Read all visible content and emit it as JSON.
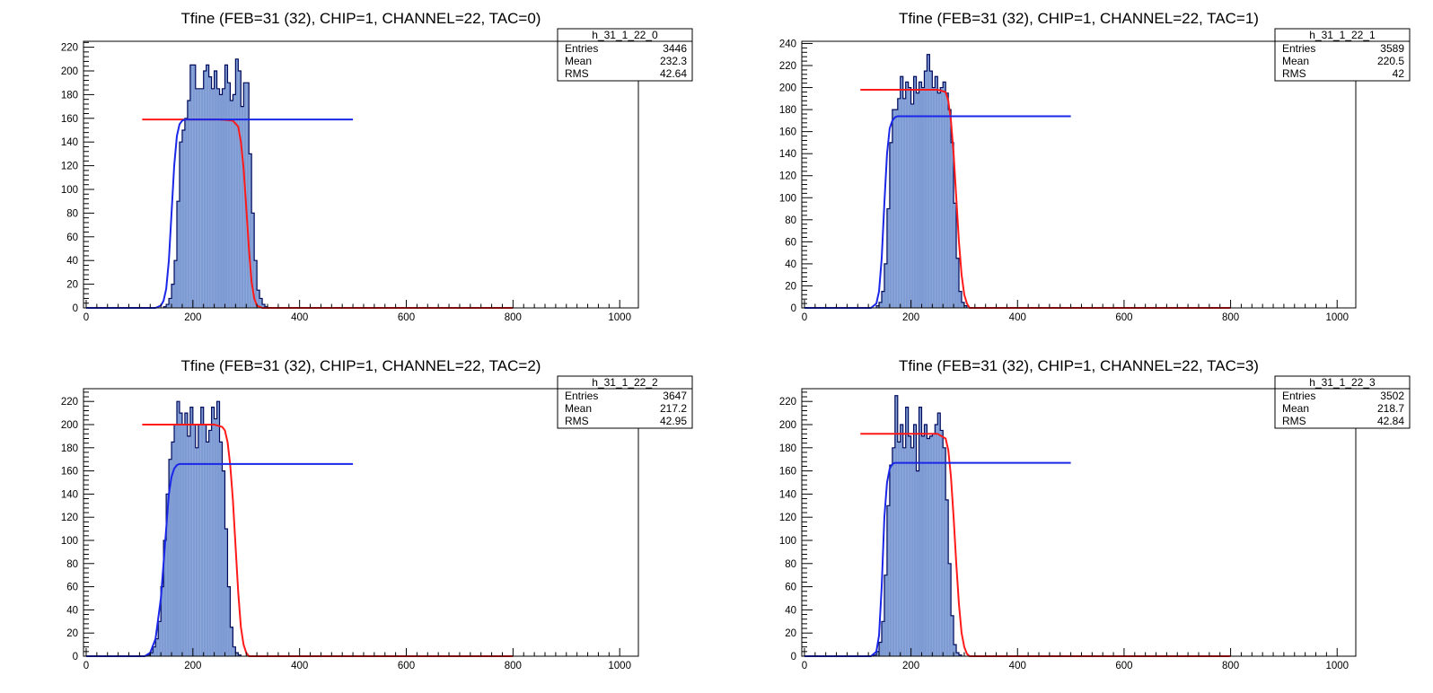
{
  "colors": {
    "fill": "#7f9bd4",
    "outline": "#000b5c",
    "fit_a": "#1a27e8",
    "fit_b": "#ff1a1a",
    "frame": "#000000"
  },
  "chart_data": [
    {
      "type": "bar",
      "title": "Tfine (FEB=31 (32), CHIP=1, CHANNEL=22, TAC=0)",
      "xlabel": "",
      "ylabel": "",
      "xlim": [
        -5,
        1035
      ],
      "ylim": [
        0,
        225
      ],
      "xticks": [
        0,
        200,
        400,
        600,
        800,
        1000
      ],
      "yticks": [
        0,
        20,
        40,
        60,
        80,
        100,
        120,
        140,
        160,
        180,
        200,
        220
      ],
      "stats": {
        "name": "h_31_1_22_0",
        "rows": [
          {
            "label": "Entries",
            "value": "3446"
          },
          {
            "label": "Mean",
            "value": "232.3"
          },
          {
            "label": "RMS",
            "value": "42.64"
          }
        ]
      },
      "bin_width": 5,
      "hist": {
        "x_start": 145,
        "values": [
          1,
          3,
          8,
          20,
          40,
          90,
          140,
          150,
          160,
          175,
          205,
          205,
          185,
          185,
          185,
          200,
          205,
          195,
          185,
          200,
          185,
          180,
          185,
          205,
          190,
          175,
          180,
          210,
          200,
          170,
          190,
          190,
          130,
          80,
          40,
          15,
          8,
          3,
          1
        ]
      },
      "fit_a": {
        "label": "rising-edge fit",
        "x": [
          0,
          130,
          140,
          145,
          150,
          155,
          160,
          165,
          170,
          175,
          180,
          185,
          190,
          500
        ],
        "y": [
          0,
          0,
          2,
          6,
          16,
          40,
          80,
          120,
          145,
          155,
          158,
          159,
          159,
          159
        ]
      },
      "fit_b": {
        "label": "falling-edge fit",
        "x": [
          105,
          250,
          275,
          285,
          290,
          295,
          300,
          305,
          310,
          315,
          320,
          330,
          800
        ],
        "y": [
          159,
          159,
          158,
          153,
          140,
          118,
          85,
          50,
          22,
          8,
          2,
          0,
          0
        ]
      }
    },
    {
      "type": "bar",
      "title": "Tfine (FEB=31 (32), CHIP=1, CHANNEL=22, TAC=1)",
      "xlabel": "",
      "ylabel": "",
      "xlim": [
        -5,
        1035
      ],
      "ylim": [
        0,
        242
      ],
      "xticks": [
        0,
        200,
        400,
        600,
        800,
        1000
      ],
      "yticks": [
        0,
        20,
        40,
        60,
        80,
        100,
        120,
        140,
        160,
        180,
        200,
        220,
        240
      ],
      "stats": {
        "name": "h_31_1_22_1",
        "rows": [
          {
            "label": "Entries",
            "value": "3589"
          },
          {
            "label": "Mean",
            "value": "220.5"
          },
          {
            "label": "RMS",
            "value": "42"
          }
        ]
      },
      "bin_width": 5,
      "hist": {
        "x_start": 135,
        "values": [
          2,
          5,
          15,
          40,
          90,
          150,
          180,
          180,
          190,
          210,
          190,
          205,
          200,
          185,
          210,
          195,
          205,
          200,
          215,
          230,
          215,
          200,
          210,
          195,
          200,
          205,
          195,
          180,
          150,
          95,
          45,
          15,
          5,
          2
        ]
      },
      "fit_a": {
        "label": "rising-edge fit",
        "x": [
          0,
          125,
          135,
          140,
          145,
          150,
          155,
          160,
          165,
          170,
          175,
          500
        ],
        "y": [
          0,
          0,
          4,
          15,
          45,
          95,
          140,
          163,
          170,
          173,
          174,
          174
        ]
      },
      "fit_b": {
        "label": "falling-edge fit",
        "x": [
          105,
          250,
          265,
          270,
          275,
          280,
          285,
          290,
          295,
          300,
          305,
          310,
          800
        ],
        "y": [
          198,
          198,
          196,
          188,
          170,
          140,
          100,
          60,
          30,
          12,
          4,
          0,
          0
        ]
      }
    },
    {
      "type": "bar",
      "title": "Tfine (FEB=31 (32), CHIP=1, CHANNEL=22, TAC=2)",
      "xlabel": "",
      "ylabel": "",
      "xlim": [
        -5,
        1035
      ],
      "ylim": [
        0,
        231
      ],
      "xticks": [
        0,
        200,
        400,
        600,
        800,
        1000
      ],
      "yticks": [
        0,
        20,
        40,
        60,
        80,
        100,
        120,
        140,
        160,
        180,
        200,
        220
      ],
      "stats": {
        "name": "h_31_1_22_2",
        "rows": [
          {
            "label": "Entries",
            "value": "3647"
          },
          {
            "label": "Mean",
            "value": "217.2"
          },
          {
            "label": "RMS",
            "value": "42.95"
          }
        ]
      },
      "bin_width": 5,
      "hist": {
        "x_start": 115,
        "values": [
          1,
          3,
          8,
          15,
          30,
          60,
          100,
          140,
          170,
          185,
          200,
          220,
          210,
          200,
          210,
          190,
          215,
          200,
          180,
          200,
          215,
          200,
          185,
          195,
          215,
          205,
          220,
          185,
          160,
          110,
          60,
          25,
          8,
          3,
          1
        ]
      },
      "fit_a": {
        "label": "rising-edge fit",
        "x": [
          0,
          110,
          120,
          130,
          140,
          150,
          155,
          160,
          165,
          170,
          175,
          500
        ],
        "y": [
          0,
          0,
          3,
          15,
          50,
          110,
          140,
          155,
          162,
          165,
          166,
          166
        ]
      },
      "fit_b": {
        "label": "falling-edge fit",
        "x": [
          105,
          240,
          255,
          260,
          265,
          270,
          275,
          280,
          285,
          290,
          295,
          300,
          305,
          800
        ],
        "y": [
          200,
          200,
          198,
          195,
          185,
          165,
          135,
          95,
          55,
          25,
          10,
          3,
          0,
          0
        ]
      }
    },
    {
      "type": "bar",
      "title": "Tfine (FEB=31 (32), CHIP=1, CHANNEL=22, TAC=3)",
      "xlabel": "",
      "ylabel": "",
      "xlim": [
        -5,
        1035
      ],
      "ylim": [
        0,
        231
      ],
      "xticks": [
        0,
        200,
        400,
        600,
        800,
        1000
      ],
      "yticks": [
        0,
        20,
        40,
        60,
        80,
        100,
        120,
        140,
        160,
        180,
        200,
        220
      ],
      "stats": {
        "name": "h_31_1_22_3",
        "rows": [
          {
            "label": "Entries",
            "value": "3502"
          },
          {
            "label": "Mean",
            "value": "218.7"
          },
          {
            "label": "RMS",
            "value": "42.84"
          }
        ]
      },
      "bin_width": 5,
      "hist": {
        "x_start": 130,
        "values": [
          1,
          4,
          12,
          30,
          70,
          130,
          165,
          180,
          225,
          185,
          200,
          180,
          215,
          190,
          180,
          200,
          160,
          215,
          190,
          200,
          188,
          190,
          192,
          200,
          210,
          195,
          180,
          135,
          80,
          35,
          10,
          3,
          1
        ]
      },
      "fit_a": {
        "label": "rising-edge fit",
        "x": [
          0,
          125,
          135,
          140,
          145,
          150,
          155,
          160,
          165,
          170,
          175,
          500
        ],
        "y": [
          0,
          0,
          4,
          18,
          60,
          120,
          150,
          162,
          166,
          167,
          167,
          167
        ]
      },
      "fit_b": {
        "label": "falling-edge fit",
        "x": [
          105,
          250,
          265,
          270,
          275,
          280,
          285,
          290,
          295,
          300,
          305,
          310,
          800
        ],
        "y": [
          192,
          192,
          188,
          178,
          155,
          120,
          80,
          45,
          20,
          8,
          2,
          0,
          0
        ]
      }
    }
  ]
}
